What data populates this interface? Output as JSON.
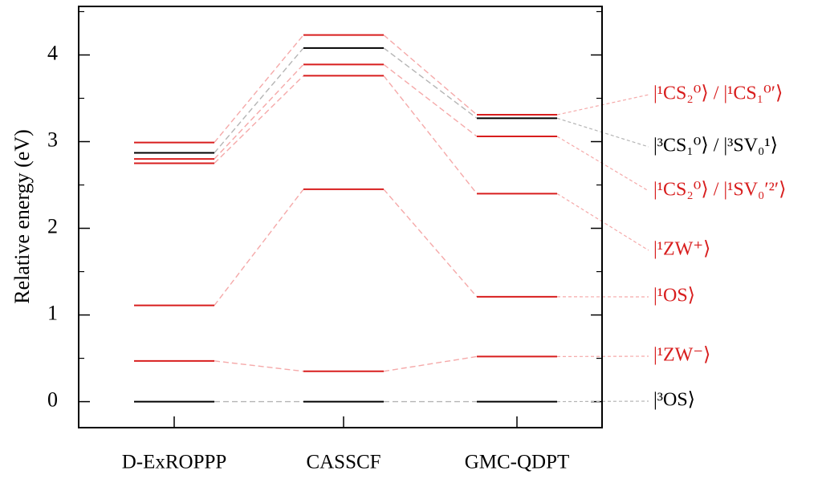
{
  "chart_data": {
    "type": "energy-levels",
    "y_label": "Relative energy (eV)",
    "categories": [
      "D-ExROPPP",
      "CASSCF",
      "GMC-QDPT"
    ],
    "ylim": [
      -0.3,
      4.56
    ],
    "yticks": [
      0,
      1,
      2,
      3,
      4
    ],
    "yminorticks": [
      0.5,
      1.5,
      2.5,
      3.5,
      4.5
    ],
    "connector_colors": {
      "#d81e1e": "#f5a9a9",
      "#000000": "#b5b5b5"
    },
    "series": [
      {
        "name": "|¹CS₂⁰⟩ / |¹CS₁⁰′⟩",
        "color": "#d81e1e",
        "values": [
          2.99,
          4.23,
          3.31
        ]
      },
      {
        "name": "|³CS₁⁰⟩ / |³SV₀¹⟩",
        "color": "#000000",
        "values": [
          2.87,
          4.08,
          3.27
        ]
      },
      {
        "name": "|¹CS₂⁰⟩ / |¹SV₀′²′⟩",
        "color": "#d81e1e",
        "values": [
          2.8,
          3.89,
          3.06
        ]
      },
      {
        "name": "|¹ZW⁺⟩",
        "color": "#d81e1e",
        "values": [
          2.75,
          3.76,
          2.4
        ]
      },
      {
        "name": "|¹OS⟩",
        "color": "#d81e1e",
        "values": [
          1.11,
          2.45,
          1.21
        ]
      },
      {
        "name": "|¹ZW⁻⟩",
        "color": "#d81e1e",
        "values": [
          0.47,
          0.35,
          0.52
        ]
      },
      {
        "name": "|³OS⟩",
        "color": "#000000",
        "values": [
          0,
          0,
          0
        ]
      }
    ]
  }
}
